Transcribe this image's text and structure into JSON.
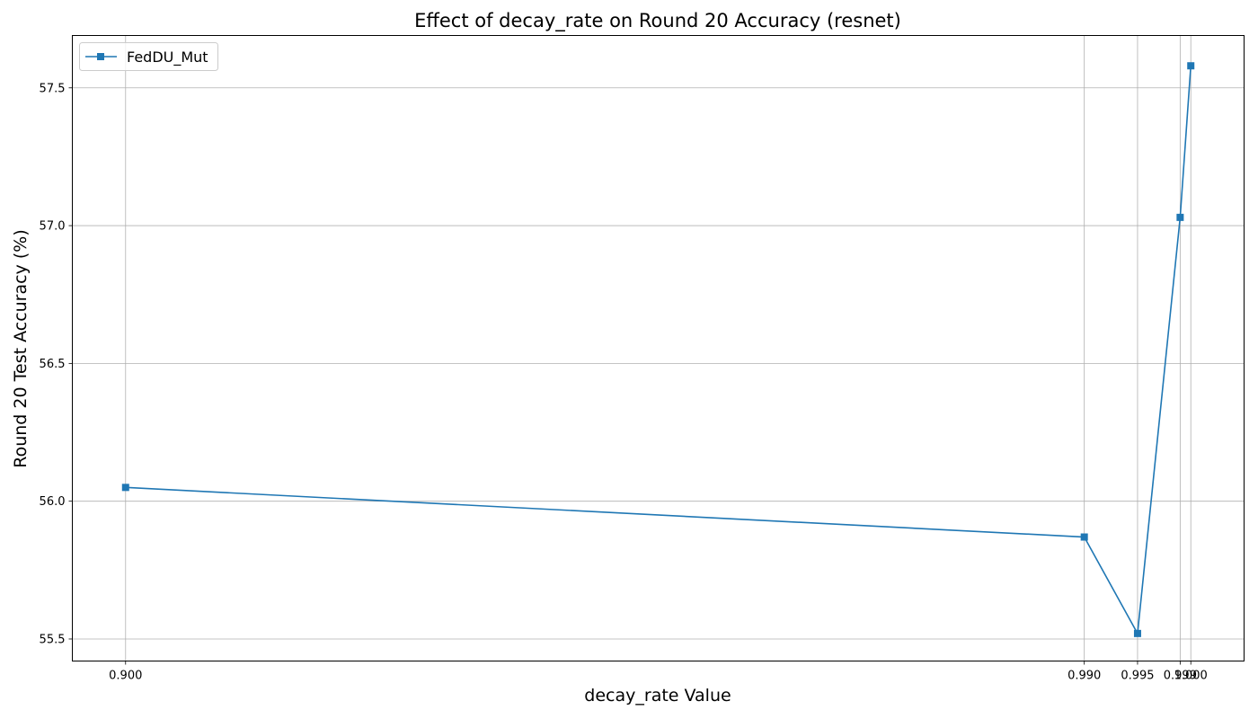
{
  "chart_data": {
    "type": "line",
    "title": "Effect of decay_rate on Round 20 Accuracy (resnet)",
    "xlabel": "decay_rate Value",
    "ylabel": "Round 20 Test Accuracy (%)",
    "x": [
      0.9,
      0.99,
      0.995,
      0.999,
      1.0
    ],
    "x_tick_labels": [
      "0.900",
      "0.990",
      "0.995",
      "0.999",
      "1.000"
    ],
    "y_ticks": [
      55.5,
      56.0,
      56.5,
      57.0,
      57.5
    ],
    "y_tick_labels": [
      "55.5",
      "56.0",
      "56.5",
      "57.0",
      "57.5"
    ],
    "xlim": [
      0.895,
      1.005
    ],
    "ylim": [
      55.42,
      57.69
    ],
    "grid": true,
    "legend_position": "upper left",
    "series": [
      {
        "name": "FedDU_Mut",
        "color": "#1f77b4",
        "marker": "square",
        "values": [
          56.05,
          55.87,
          55.52,
          57.03,
          57.58
        ]
      }
    ]
  }
}
